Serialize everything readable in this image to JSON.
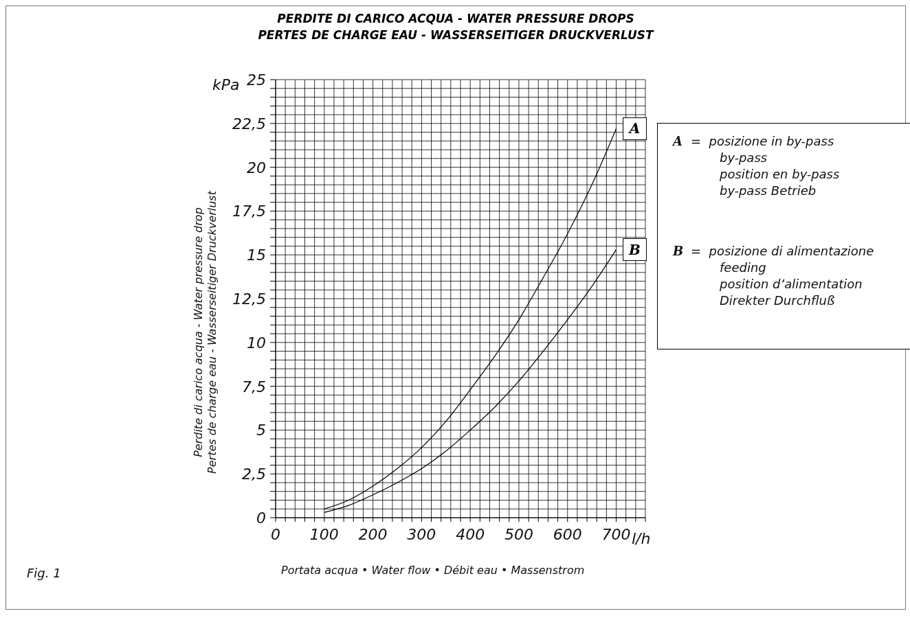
{
  "chart_data": {
    "type": "line",
    "title": "PERDITE DI CARICO ACQUA  -  WATER PRESSURE DROPS\nPERTES DE CHARGE EAU  -  WASSERSEITIGER DRUCKVERLUST",
    "xlabel": "Portata acqua • Water flow • Débit eau • Massenstrom",
    "ylabel": "Perdite di carico acqua - Water pressure drop\nPertes de charge eau - Wasserseitiger Druckverlust",
    "annotations": [
      "=  posizione in by-pass\nby-pass\nposition en by-pass\nby-pass Betrieb",
      "=  posizione di alimentazione\nfeeding\nposition d’alimentation\nDirekter Durchfluß",
      "Fig.  1",
      "kPa",
      "l/h"
    ],
    "x": [
      100,
      150,
      200,
      250,
      300,
      350,
      400,
      450,
      500,
      550,
      600,
      650,
      700
    ],
    "series": [
      {
        "name": "A",
        "color": "#000000",
        "values": [
          0.5,
          1.0,
          1.8,
          2.8,
          4.0,
          5.5,
          7.3,
          9.2,
          11.3,
          13.7,
          16.2,
          19.0,
          22.2
        ]
      },
      {
        "name": "B",
        "color": "#000000",
        "values": [
          0.3,
          0.7,
          1.3,
          2.0,
          2.8,
          3.8,
          5.0,
          6.3,
          7.8,
          9.5,
          11.3,
          13.2,
          15.3
        ]
      }
    ],
    "xlim": [
      0,
      760
    ],
    "xticks": [
      0,
      {
        "value": 20,
        "label": null
      },
      {
        "value": 40,
        "label": null
      },
      {
        "value": 60,
        "label": null
      },
      {
        "value": 80,
        "label": null
      },
      100,
      {
        "value": 120,
        "label": null
      },
      {
        "value": 140,
        "label": null
      },
      {
        "value": 160,
        "label": null
      },
      {
        "value": 180,
        "label": null
      },
      200,
      {
        "value": 220,
        "label": null
      },
      {
        "value": 240,
        "label": null
      },
      {
        "value": 260,
        "label": null
      },
      {
        "value": 280,
        "label": null
      },
      300,
      {
        "value": 320,
        "label": null
      },
      {
        "value": 340,
        "label": null
      },
      {
        "value": 360,
        "label": null
      },
      {
        "value": 380,
        "label": null
      },
      400,
      {
        "value": 420,
        "label": null
      },
      {
        "value": 440,
        "label": null
      },
      {
        "value": 460,
        "label": null
      },
      {
        "value": 480,
        "label": null
      },
      500,
      {
        "value": 520,
        "label": null
      },
      {
        "value": 540,
        "label": null
      },
      {
        "value": 560,
        "label": null
      },
      {
        "value": 580,
        "label": null
      },
      600,
      {
        "value": 620,
        "label": null
      },
      {
        "value": 640,
        "label": null
      },
      {
        "value": 660,
        "label": null
      },
      {
        "value": 680,
        "label": null
      },
      700,
      {
        "value": 720,
        "label": null
      },
      {
        "value": 740,
        "label": null
      },
      {
        "value": 760,
        "label": null
      }
    ],
    "ylim": [
      0,
      25
    ],
    "yticks": [
      0,
      {
        "value": 0.5,
        "label": null
      },
      {
        "value": 1,
        "label": null
      },
      {
        "value": 1.5,
        "label": null
      },
      {
        "value": 2,
        "label": null
      },
      {
        "value": 2.5,
        "label": "2,5"
      },
      {
        "value": 3,
        "label": null
      },
      {
        "value": 3.5,
        "label": null
      },
      {
        "value": 4,
        "label": null
      },
      {
        "value": 4.5,
        "label": null
      },
      5,
      {
        "value": 5.5,
        "label": null
      },
      {
        "value": 6,
        "label": null
      },
      {
        "value": 6.5,
        "label": null
      },
      {
        "value": 7,
        "label": null
      },
      {
        "value": 7.5,
        "label": "7,5"
      },
      {
        "value": 8,
        "label": null
      },
      {
        "value": 8.5,
        "label": null
      },
      {
        "value": 9,
        "label": null
      },
      {
        "value": 9.5,
        "label": null
      },
      10,
      {
        "value": 10.5,
        "label": null
      },
      {
        "value": 11,
        "label": null
      },
      {
        "value": 11.5,
        "label": null
      },
      {
        "value": 12,
        "label": null
      },
      {
        "value": 12.5,
        "label": "12,5"
      },
      {
        "value": 13,
        "label": null
      },
      {
        "value": 13.5,
        "label": null
      },
      {
        "value": 14,
        "label": null
      },
      {
        "value": 14.5,
        "label": null
      },
      15,
      {
        "value": 15.5,
        "label": null
      },
      {
        "value": 16,
        "label": null
      },
      {
        "value": 16.5,
        "label": null
      },
      {
        "value": 17,
        "label": null
      },
      {
        "value": 17.5,
        "label": "17,5"
      },
      {
        "value": 18,
        "label": null
      },
      {
        "value": 18.5,
        "label": null
      },
      {
        "value": 19,
        "label": null
      },
      {
        "value": 19.5,
        "label": null
      },
      20,
      {
        "value": 20.5,
        "label": null
      },
      {
        "value": 21,
        "label": null
      },
      {
        "value": 21.5,
        "label": null
      },
      {
        "value": 22,
        "label": null
      },
      {
        "value": 22.5,
        "label": "22,5"
      },
      {
        "value": 23,
        "label": null
      },
      {
        "value": 23.5,
        "label": null
      },
      {
        "value": 24,
        "label": null
      },
      {
        "value": 24.5,
        "label": null
      },
      25
    ],
    "grid": true,
    "marker": "none",
    "line_style": "solid"
  }
}
